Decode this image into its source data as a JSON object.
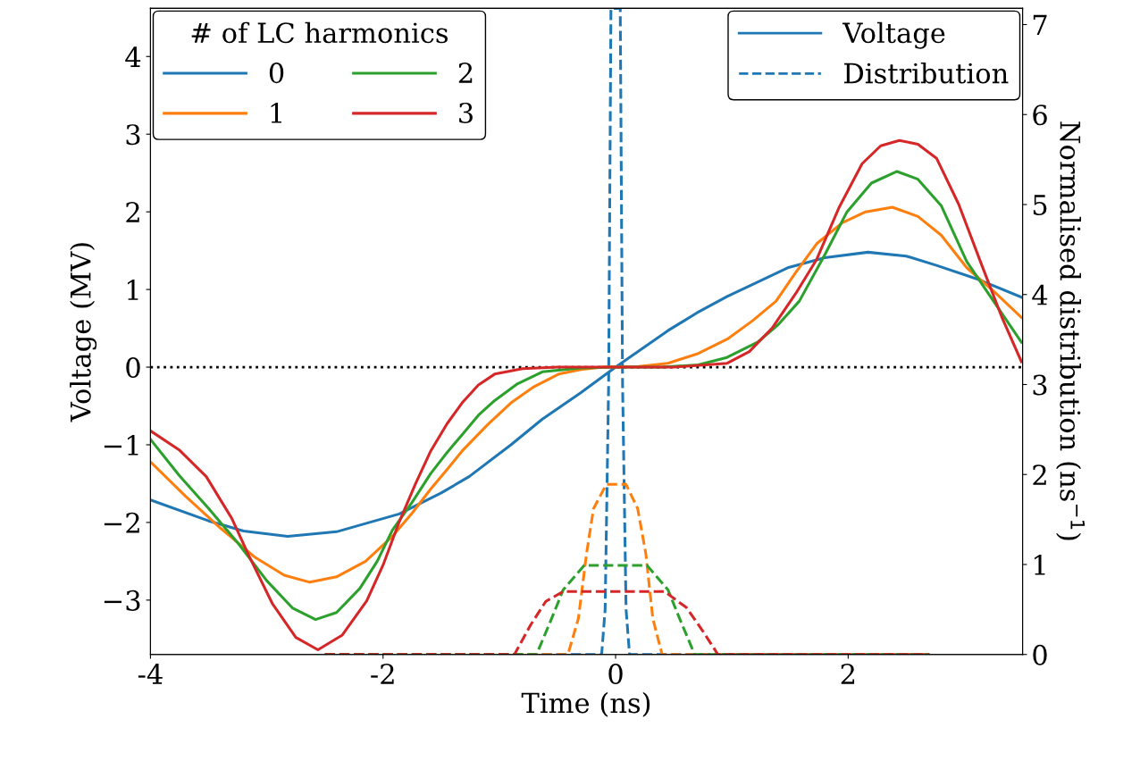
{
  "chart_data": {
    "type": "line",
    "xlabel": "Time (ns)",
    "ylabel": "Voltage (MV)",
    "y2label": "Normalised distribution (ns$^{−1}$)",
    "legend_title": "# of LC harmonics",
    "legend": "top left",
    "xlim": [
      -4,
      3.5
    ],
    "xticks": [
      -4,
      -2,
      0,
      2
    ],
    "ylim": [
      -3.7,
      4.62
    ],
    "yticks": [
      {
        "value": -3,
        "label": "−3"
      },
      {
        "value": -2,
        "label": "−2"
      },
      {
        "value": -1,
        "label": "−1"
      },
      0,
      1,
      2,
      3,
      4
    ],
    "y2lim": [
      0,
      7.18
    ],
    "y2ticks": [
      0,
      1,
      2,
      3,
      4,
      5,
      6,
      7
    ],
    "annotations": [
      "Voltage",
      "Distribution"
    ],
    "ref_lines": [
      {
        "axis": "y",
        "value": 0,
        "color": "#000000",
        "line_style": "dotted"
      }
    ],
    "series": [
      {
        "name": "0",
        "color": "#1f77b4",
        "line_style": "solid",
        "x": [
          -4,
          -3.5,
          -3.2,
          -2.82,
          -2.4,
          -1.86,
          -1.5,
          -1.26,
          -0.9,
          -0.63,
          -0.3,
          0,
          0.45,
          0.7,
          0.96,
          1.2,
          1.48,
          1.8,
          2.17,
          2.5,
          2.76,
          3.1,
          3.49
        ],
        "values": [
          -1.71,
          -1.98,
          -2.11,
          -2.18,
          -2.12,
          -1.89,
          -1.62,
          -1.41,
          -1.0,
          -0.67,
          -0.33,
          0,
          0.47,
          0.7,
          0.91,
          1.08,
          1.28,
          1.41,
          1.48,
          1.43,
          1.31,
          1.14,
          0.9
        ]
      },
      {
        "name": "1",
        "color": "#ff7f0e",
        "line_style": "solid",
        "x": [
          -4,
          -3.7,
          -3.4,
          -3.1,
          -2.85,
          -2.63,
          -2.4,
          -2.15,
          -1.92,
          -1.75,
          -1.59,
          -1.45,
          -1.32,
          -1.1,
          -0.9,
          -0.7,
          -0.49,
          -0.3,
          -0.11,
          0.2,
          0.45,
          0.7,
          0.96,
          1.18,
          1.38,
          1.55,
          1.73,
          1.95,
          2.15,
          2.38,
          2.6,
          2.8,
          3.02,
          3.25,
          3.49
        ],
        "values": [
          -1.22,
          -1.66,
          -2.07,
          -2.45,
          -2.68,
          -2.77,
          -2.7,
          -2.5,
          -2.18,
          -1.88,
          -1.57,
          -1.32,
          -1.08,
          -0.74,
          -0.46,
          -0.25,
          -0.09,
          -0.03,
          0,
          0.01,
          0.05,
          0.17,
          0.36,
          0.6,
          0.85,
          1.22,
          1.59,
          1.86,
          2.0,
          2.06,
          1.94,
          1.7,
          1.28,
          0.98,
          0.64
        ]
      },
      {
        "name": "2",
        "color": "#2ca02c",
        "line_style": "solid",
        "x": [
          -4,
          -3.75,
          -3.5,
          -3.24,
          -3.0,
          -2.78,
          -2.58,
          -2.4,
          -2.2,
          -2.05,
          -1.92,
          -1.75,
          -1.59,
          -1.45,
          -1.32,
          -1.18,
          -1.04,
          -0.85,
          -0.63,
          -0.3,
          0,
          0.4,
          0.71,
          0.95,
          1.22,
          1.4,
          1.58,
          1.8,
          1.99,
          2.2,
          2.42,
          2.6,
          2.8,
          3.02,
          3.25,
          3.49
        ],
        "values": [
          -0.93,
          -1.4,
          -1.82,
          -2.28,
          -2.75,
          -3.1,
          -3.25,
          -3.16,
          -2.85,
          -2.5,
          -2.1,
          -1.74,
          -1.37,
          -1.1,
          -0.87,
          -0.62,
          -0.43,
          -0.22,
          -0.06,
          -0.01,
          0,
          0,
          0.03,
          0.12,
          0.32,
          0.55,
          0.85,
          1.45,
          2.0,
          2.37,
          2.52,
          2.42,
          2.08,
          1.36,
          0.85,
          0.32
        ]
      },
      {
        "name": "3",
        "color": "#d62728",
        "line_style": "solid",
        "x": [
          -4,
          -3.75,
          -3.52,
          -3.3,
          -3.15,
          -2.95,
          -2.75,
          -2.56,
          -2.35,
          -2.14,
          -2.0,
          -1.86,
          -1.72,
          -1.59,
          -1.45,
          -1.32,
          -1.18,
          -1.04,
          -0.8,
          -0.5,
          0,
          0.5,
          0.96,
          1.15,
          1.35,
          1.55,
          1.73,
          1.92,
          2.12,
          2.28,
          2.44,
          2.6,
          2.76,
          2.95,
          3.15,
          3.32,
          3.49
        ],
        "values": [
          -0.82,
          -1.07,
          -1.41,
          -1.95,
          -2.44,
          -3.05,
          -3.48,
          -3.64,
          -3.45,
          -3.01,
          -2.55,
          -1.99,
          -1.5,
          -1.08,
          -0.73,
          -0.46,
          -0.23,
          -0.09,
          -0.02,
          0,
          0,
          0,
          0.05,
          0.2,
          0.51,
          0.95,
          1.39,
          2.05,
          2.62,
          2.85,
          2.92,
          2.87,
          2.69,
          2.1,
          1.31,
          0.65,
          0.07
        ]
      },
      {
        "color": "#1f77b4",
        "line_style": "dashed",
        "axis": "y2",
        "x": [
          -2.5,
          -0.12,
          -0.09,
          -0.06,
          -0.04,
          0,
          0.04,
          0.06,
          0.09,
          0.12,
          2.7
        ],
        "values": [
          0,
          0,
          0.5,
          3,
          7.18,
          7.18,
          7.18,
          3,
          0.5,
          0,
          0
        ]
      },
      {
        "color": "#ff7f0e",
        "line_style": "dashed",
        "axis": "y2",
        "x": [
          -2.5,
          -0.41,
          -0.32,
          -0.25,
          -0.19,
          -0.08,
          0.09,
          0.19,
          0.26,
          0.32,
          0.4,
          2.7
        ],
        "values": [
          0,
          0,
          0.4,
          1.12,
          1.62,
          1.89,
          1.89,
          1.62,
          1.12,
          0.4,
          0,
          0
        ]
      },
      {
        "color": "#2ca02c",
        "line_style": "dashed",
        "axis": "y2",
        "x": [
          -2.5,
          -0.68,
          -0.55,
          -0.45,
          -0.27,
          0.27,
          0.45,
          0.55,
          0.68,
          2.7
        ],
        "values": [
          0,
          0,
          0.4,
          0.72,
          0.99,
          0.99,
          0.72,
          0.4,
          0,
          0
        ]
      },
      {
        "color": "#d62728",
        "line_style": "dashed",
        "axis": "y2",
        "x": [
          -2.5,
          -0.87,
          -0.73,
          -0.6,
          -0.45,
          0.42,
          0.61,
          0.75,
          0.88,
          2.7
        ],
        "values": [
          0,
          0,
          0.33,
          0.59,
          0.7,
          0.7,
          0.52,
          0.26,
          0,
          0
        ]
      }
    ]
  }
}
